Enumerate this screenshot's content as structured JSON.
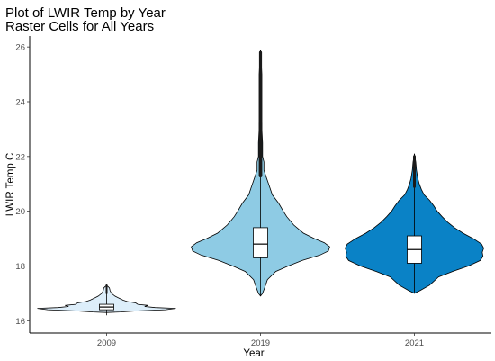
{
  "chart_data": {
    "type": "violin",
    "title": "Plot of LWIR Temp by Year",
    "subtitle": "Raster Cells for All Years",
    "xlabel": "Year",
    "ylabel": "LWIR Temp C",
    "categories": [
      "2009",
      "2019",
      "2021"
    ],
    "ylim": [
      15.55,
      26.4
    ],
    "yticks": [
      16,
      18,
      20,
      22,
      24,
      26
    ],
    "grid": false,
    "legend": "none",
    "fill_colors": [
      "#DDEEFA",
      "#8ECBE4",
      "#0A82C6"
    ],
    "box_stats": [
      {
        "category": "2009",
        "min": 16.2,
        "q1": 16.4,
        "median": 16.5,
        "q3": 16.6,
        "max": 17.2
      },
      {
        "category": "2019",
        "min": 16.9,
        "q1": 18.3,
        "median": 18.8,
        "q3": 19.4,
        "max": 25.9
      },
      {
        "category": "2021",
        "min": 17.0,
        "q1": 18.1,
        "median": 18.6,
        "q3": 19.1,
        "max": 22.1
      }
    ],
    "violin_profiles": [
      {
        "category": "2009",
        "min": 16.3,
        "max": 17.3,
        "width": [
          [
            16.3,
            0.0
          ],
          [
            16.32,
            0.2
          ],
          [
            16.36,
            0.45
          ],
          [
            16.4,
            0.85
          ],
          [
            16.45,
            1.0
          ],
          [
            16.48,
            0.7
          ],
          [
            16.52,
            0.55
          ],
          [
            16.56,
            0.6
          ],
          [
            16.6,
            0.45
          ],
          [
            16.65,
            0.42
          ],
          [
            16.7,
            0.3
          ],
          [
            16.75,
            0.24
          ],
          [
            16.8,
            0.2
          ],
          [
            16.85,
            0.16
          ],
          [
            16.9,
            0.12
          ],
          [
            17.0,
            0.07
          ],
          [
            17.1,
            0.05
          ],
          [
            17.2,
            0.04
          ],
          [
            17.3,
            0.0
          ]
        ]
      },
      {
        "category": "2019",
        "min": 16.9,
        "max": 25.9,
        "width": [
          [
            16.9,
            0.0
          ],
          [
            17.0,
            0.03
          ],
          [
            17.2,
            0.06
          ],
          [
            17.5,
            0.1
          ],
          [
            17.8,
            0.22
          ],
          [
            18.0,
            0.4
          ],
          [
            18.2,
            0.6
          ],
          [
            18.4,
            0.86
          ],
          [
            18.55,
            0.98
          ],
          [
            18.7,
            1.0
          ],
          [
            18.85,
            0.92
          ],
          [
            19.0,
            0.78
          ],
          [
            19.2,
            0.62
          ],
          [
            19.5,
            0.48
          ],
          [
            19.8,
            0.38
          ],
          [
            20.0,
            0.33
          ],
          [
            20.3,
            0.26
          ],
          [
            20.6,
            0.17
          ],
          [
            20.9,
            0.13
          ],
          [
            21.2,
            0.09
          ],
          [
            21.5,
            0.05
          ],
          [
            21.8,
            0.05
          ],
          [
            22.0,
            0.03
          ],
          [
            22.5,
            0.03
          ],
          [
            23.0,
            0.02
          ],
          [
            24.0,
            0.02
          ],
          [
            25.0,
            0.02
          ],
          [
            25.9,
            0.0
          ]
        ]
      },
      {
        "category": "2021",
        "min": 17.0,
        "max": 22.1,
        "width": [
          [
            17.0,
            0.0
          ],
          [
            17.1,
            0.08
          ],
          [
            17.3,
            0.22
          ],
          [
            17.6,
            0.35
          ],
          [
            17.8,
            0.55
          ],
          [
            18.0,
            0.78
          ],
          [
            18.2,
            0.95
          ],
          [
            18.35,
            0.99
          ],
          [
            18.5,
            0.98
          ],
          [
            18.65,
            1.0
          ],
          [
            18.8,
            0.97
          ],
          [
            19.0,
            0.85
          ],
          [
            19.2,
            0.7
          ],
          [
            19.4,
            0.58
          ],
          [
            19.6,
            0.48
          ],
          [
            19.8,
            0.4
          ],
          [
            20.0,
            0.33
          ],
          [
            20.2,
            0.28
          ],
          [
            20.4,
            0.22
          ],
          [
            20.6,
            0.14
          ],
          [
            20.8,
            0.1
          ],
          [
            21.0,
            0.07
          ],
          [
            21.2,
            0.05
          ],
          [
            21.5,
            0.03
          ],
          [
            21.8,
            0.02
          ],
          [
            22.1,
            0.0
          ]
        ]
      }
    ],
    "tick_labels_x": [
      "2009",
      "2019",
      "2021"
    ],
    "tick_labels_y": [
      "16",
      "18",
      "20",
      "22",
      "24",
      "26"
    ]
  }
}
